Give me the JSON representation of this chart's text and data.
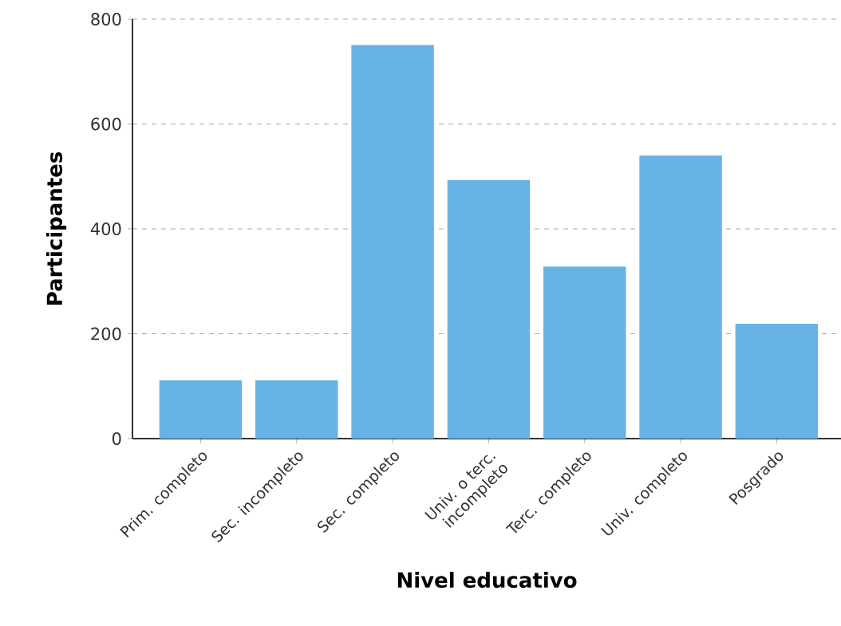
{
  "chart_data": {
    "type": "bar",
    "xlabel": "Nivel educativo",
    "ylabel": "Participantes",
    "categories": [
      "Prim. completo",
      "Sec. incompleto",
      "Sec. completo",
      "Univ. o terc. incompleto",
      "Terc. completo",
      "Univ. completo",
      "Posgrado"
    ],
    "values": [
      111,
      111,
      751,
      493,
      328,
      540,
      219
    ],
    "color": "#67b3e3",
    "ylim": [
      0,
      800
    ],
    "yticks": [
      0,
      200,
      400,
      600,
      800
    ],
    "grid": "y"
  }
}
